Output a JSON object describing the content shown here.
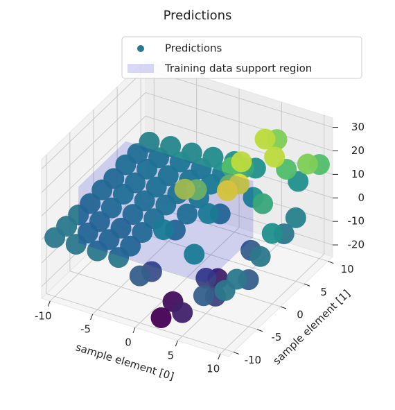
{
  "chart_data": {
    "type": "surface3d",
    "title": "Predictions",
    "xlabel": "sample element [0]",
    "ylabel": "sample element [1]",
    "xlim": [
      -11,
      11
    ],
    "ylim": [
      -11,
      11
    ],
    "zlim": [
      -25,
      34
    ],
    "xticks": [
      -10,
      -5,
      0,
      5,
      10
    ],
    "yticks": [
      -10,
      -5,
      0,
      5,
      10
    ],
    "zticks": [
      -20,
      -10,
      0,
      10,
      20,
      30
    ],
    "grid": true,
    "cmap": "viridis",
    "legend_loc": "upper right",
    "series": [
      {
        "name": "Predictions",
        "color": "#2a788e"
      },
      {
        "name": "Training data support region",
        "color": "#0000cc"
      }
    ],
    "x": [
      -10,
      -7.5,
      -5,
      -2.5,
      0,
      2.5,
      5,
      7.5,
      10
    ],
    "y": [
      -10,
      -7.5,
      -5,
      -2.5,
      0,
      2.5,
      5,
      7.5,
      10
    ],
    "z": [
      [
        0,
        0,
        0,
        0,
        -5,
        -20,
        -15,
        -5,
        0
      ],
      [
        0,
        0,
        0,
        0,
        -8,
        -18,
        5,
        -10,
        0
      ],
      [
        0,
        0,
        0,
        1,
        5,
        25,
        -10,
        30,
        -5
      ],
      [
        0,
        1,
        1,
        2,
        0,
        20,
        -15,
        28,
        0
      ],
      [
        1,
        2,
        2,
        3,
        2,
        5,
        20,
        -5,
        5
      ],
      [
        1,
        2,
        3,
        3,
        4,
        0,
        25,
        10,
        0
      ],
      [
        2,
        3,
        3,
        4,
        5,
        15,
        5,
        25,
        2
      ],
      [
        2,
        3,
        4,
        4,
        5,
        10,
        25,
        15,
        20
      ],
      [
        2,
        3,
        3,
        4,
        5,
        5,
        20,
        5,
        15
      ]
    ],
    "support_region": {
      "x": [
        -10,
        5
      ],
      "y": [
        -5,
        5
      ],
      "z": [
        -12,
        12
      ]
    }
  }
}
